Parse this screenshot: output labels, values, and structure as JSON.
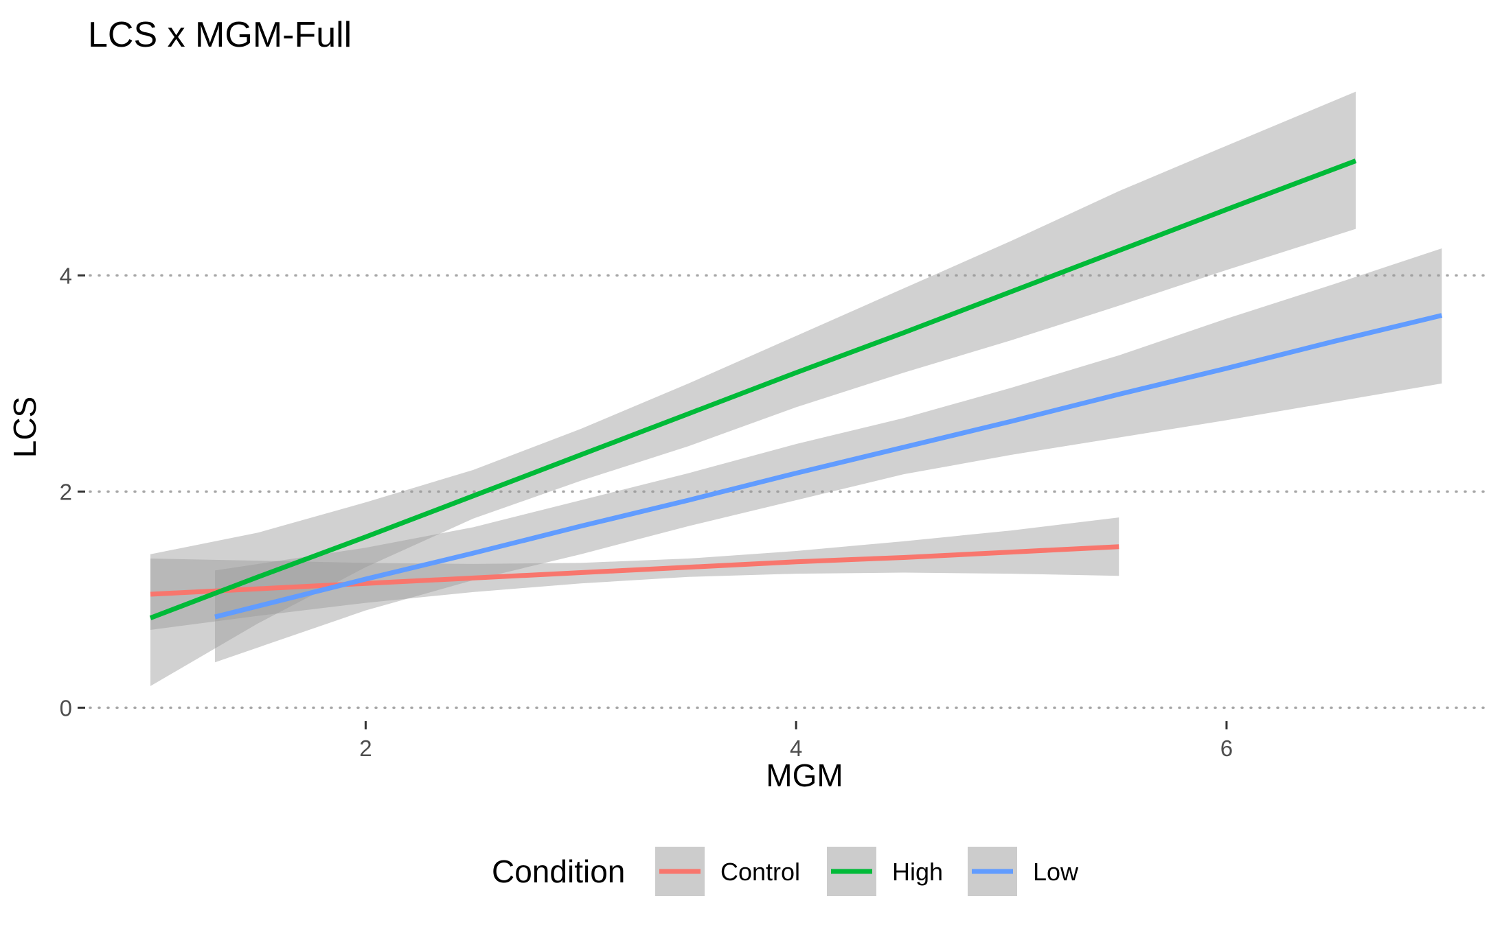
{
  "chart_data": {
    "type": "line",
    "title": "LCS x MGM-Full",
    "xlabel": "MGM",
    "ylabel": "LCS",
    "xlim": [
      0.7,
      7.2
    ],
    "ylim": [
      -0.15,
      5.85
    ],
    "x_ticks": [
      2,
      4,
      6
    ],
    "y_ticks": [
      0,
      2,
      4
    ],
    "grid": "horizontal dotted major lines",
    "legend": {
      "title": "Condition",
      "position": "bottom"
    },
    "series": [
      {
        "name": "Control",
        "color": "#F8766D",
        "x": [
          1.0,
          1.5,
          2.0,
          2.5,
          3.0,
          3.5,
          4.0,
          4.5,
          5.0,
          5.5
        ],
        "y": [
          1.05,
          1.1,
          1.15,
          1.2,
          1.25,
          1.3,
          1.35,
          1.39,
          1.44,
          1.49
        ],
        "lower": [
          0.72,
          0.85,
          0.97,
          1.07,
          1.15,
          1.21,
          1.24,
          1.25,
          1.24,
          1.22
        ],
        "upper": [
          1.38,
          1.36,
          1.34,
          1.33,
          1.34,
          1.38,
          1.45,
          1.54,
          1.64,
          1.76
        ]
      },
      {
        "name": "High",
        "color": "#00BA38",
        "x": [
          1.0,
          1.5,
          2.0,
          2.5,
          3.0,
          3.5,
          4.0,
          4.5,
          5.0,
          5.5,
          6.0,
          6.6
        ],
        "y": [
          0.83,
          1.21,
          1.58,
          1.96,
          2.34,
          2.72,
          3.1,
          3.47,
          3.85,
          4.23,
          4.61,
          5.06
        ],
        "lower": [
          0.2,
          0.78,
          1.3,
          1.75,
          2.1,
          2.42,
          2.78,
          3.1,
          3.4,
          3.72,
          4.05,
          4.43
        ],
        "upper": [
          1.42,
          1.62,
          1.9,
          2.2,
          2.58,
          3.0,
          3.44,
          3.88,
          4.32,
          4.78,
          5.2,
          5.7
        ]
      },
      {
        "name": "Low",
        "color": "#619CFF",
        "x": [
          1.3,
          2.0,
          2.5,
          3.0,
          3.5,
          4.0,
          4.5,
          5.0,
          5.5,
          6.0,
          6.5,
          7.0
        ],
        "y": [
          0.84,
          1.19,
          1.43,
          1.68,
          1.92,
          2.17,
          2.41,
          2.65,
          2.9,
          3.14,
          3.39,
          3.63
        ],
        "lower": [
          0.42,
          0.9,
          1.18,
          1.42,
          1.68,
          1.92,
          2.16,
          2.34,
          2.5,
          2.66,
          2.83,
          3.0
        ],
        "upper": [
          1.27,
          1.48,
          1.67,
          1.92,
          2.17,
          2.44,
          2.68,
          2.96,
          3.26,
          3.6,
          3.92,
          4.25
        ]
      }
    ]
  }
}
